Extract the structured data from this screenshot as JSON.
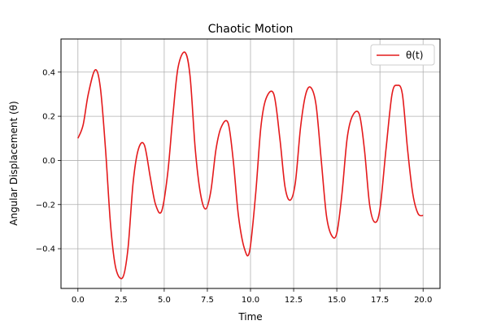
{
  "chart_data": {
    "type": "line",
    "title": "Chaotic Motion",
    "xlabel": "Time",
    "ylabel": "Angular Displacement (θ)",
    "xlim": [
      -0.98,
      20.98
    ],
    "ylim": [
      -0.58,
      0.55
    ],
    "x_ticks": [
      0.0,
      2.5,
      5.0,
      7.5,
      10.0,
      12.5,
      15.0,
      17.5,
      20.0
    ],
    "x_tick_labels": [
      "0.0",
      "2.5",
      "5.0",
      "7.5",
      "10.0",
      "12.5",
      "15.0",
      "17.5",
      "20.0"
    ],
    "y_ticks": [
      -0.4,
      -0.2,
      0.0,
      0.2,
      0.4
    ],
    "y_tick_labels": [
      "−0.4",
      "−0.2",
      "0.0",
      "0.2",
      "0.4"
    ],
    "grid": true,
    "legend_position": "top-right",
    "series": [
      {
        "name": "θ(t)",
        "color": "#e41a1c",
        "x": [
          0.0,
          0.3,
          0.6,
          1.0,
          1.3,
          1.6,
          1.9,
          2.2,
          2.6,
          2.9,
          3.2,
          3.5,
          3.85,
          4.2,
          4.5,
          4.85,
          5.2,
          5.5,
          5.8,
          6.2,
          6.5,
          6.8,
          7.1,
          7.4,
          7.7,
          8.0,
          8.3,
          8.7,
          9.0,
          9.3,
          9.65,
          9.95,
          10.3,
          10.6,
          10.9,
          11.35,
          11.7,
          12.0,
          12.3,
          12.6,
          12.9,
          13.2,
          13.5,
          13.8,
          14.1,
          14.4,
          14.7,
          15.0,
          15.3,
          15.6,
          15.9,
          16.3,
          16.6,
          16.9,
          17.2,
          17.5,
          17.85,
          18.2,
          18.5,
          18.8,
          19.1,
          19.4,
          19.7,
          20.0
        ],
        "y": [
          0.1,
          0.16,
          0.3,
          0.41,
          0.33,
          0.05,
          -0.3,
          -0.49,
          -0.53,
          -0.4,
          -0.1,
          0.05,
          0.07,
          -0.08,
          -0.2,
          -0.23,
          -0.06,
          0.2,
          0.42,
          0.49,
          0.38,
          0.05,
          -0.15,
          -0.22,
          -0.14,
          0.05,
          0.15,
          0.17,
          0.0,
          -0.25,
          -0.4,
          -0.41,
          -0.15,
          0.15,
          0.28,
          0.3,
          0.1,
          -0.12,
          -0.18,
          -0.1,
          0.15,
          0.3,
          0.33,
          0.25,
          0.0,
          -0.25,
          -0.34,
          -0.33,
          -0.15,
          0.1,
          0.2,
          0.21,
          0.05,
          -0.2,
          -0.28,
          -0.22,
          0.05,
          0.3,
          0.34,
          0.3,
          0.05,
          -0.15,
          -0.24,
          -0.25
        ]
      }
    ]
  }
}
